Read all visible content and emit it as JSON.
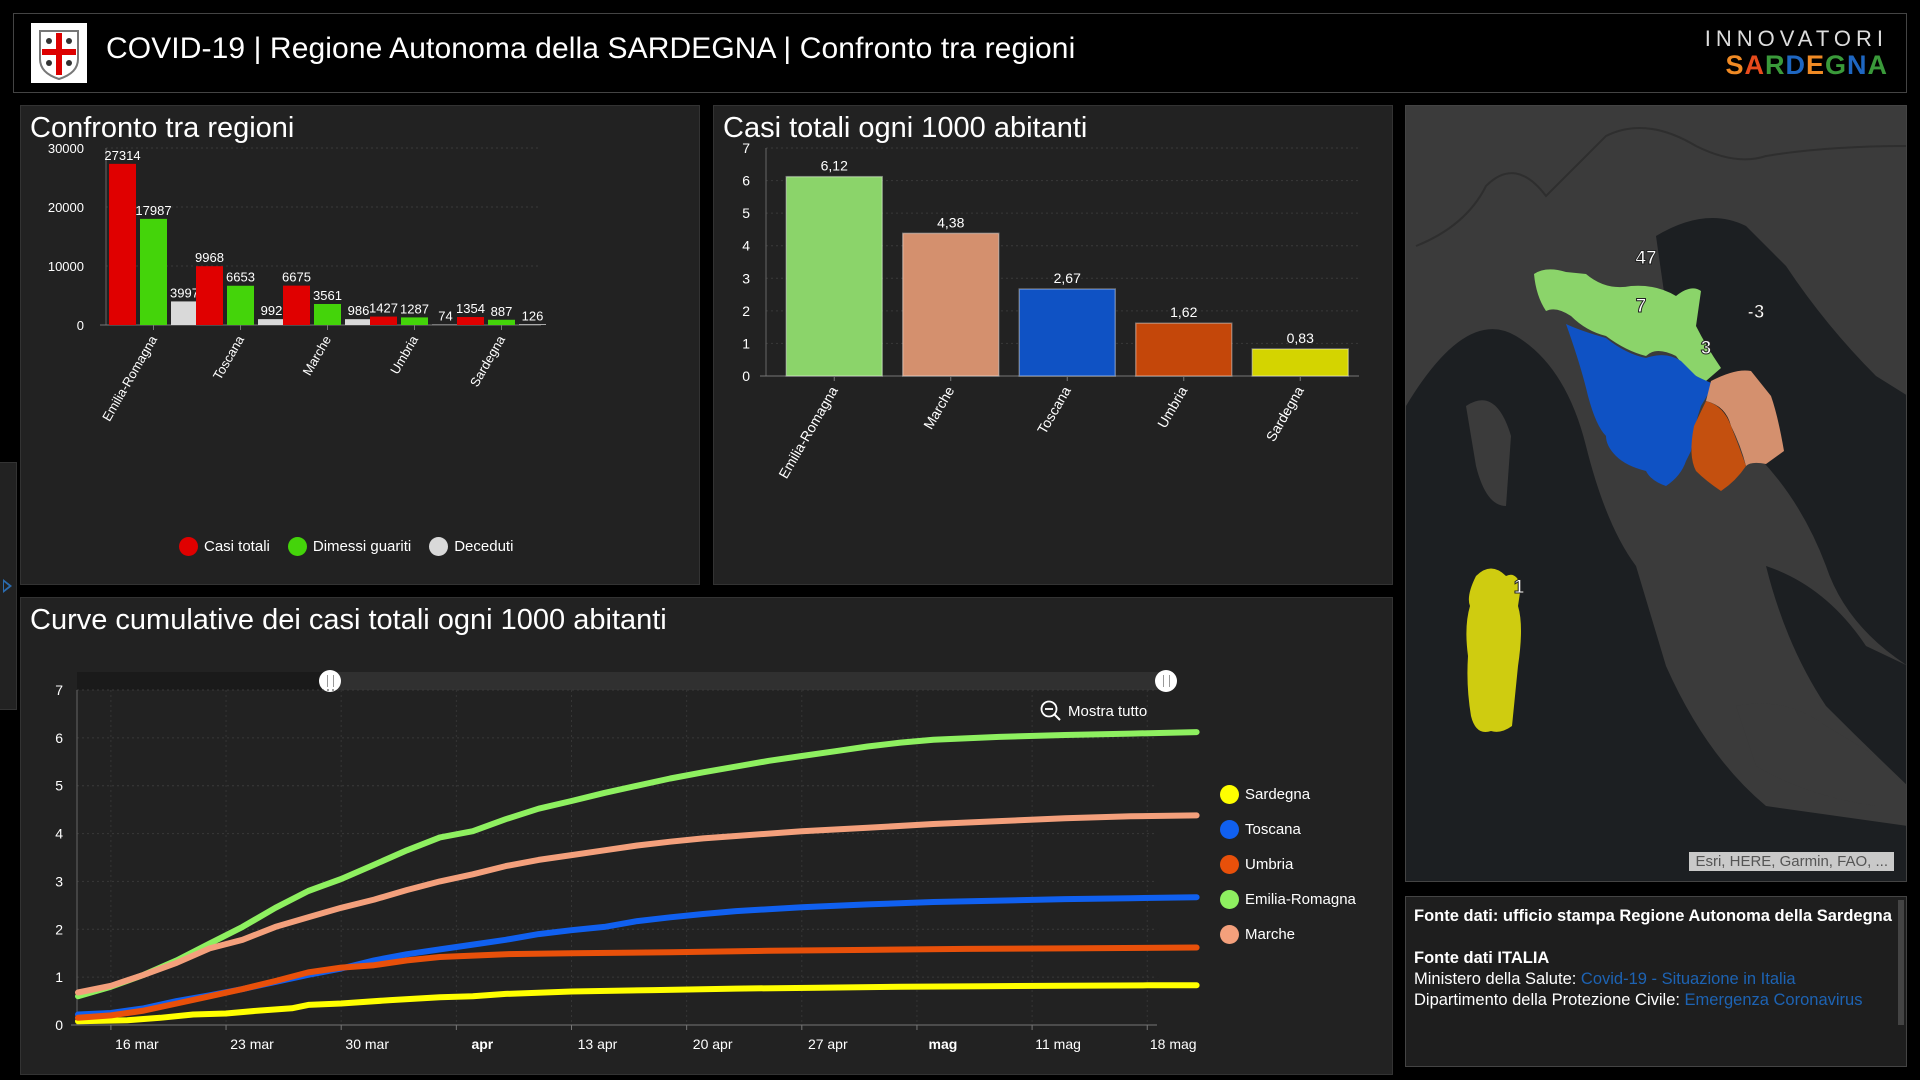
{
  "header": {
    "title": "COVID-19 | Regione Autonoma della SARDEGNA | Confronto tra regioni",
    "logo_icon": "sardinia-coat-of-arms-icon",
    "brand_top": "INNOVATORI",
    "brand_bottom_letters": [
      "S",
      "A",
      "R",
      "D",
      "E",
      "G",
      "N",
      "A"
    ],
    "brand_bottom_colors": [
      "#f08a24",
      "#e84b1c",
      "#3a9a3a",
      "#1e66c1",
      "#f08a24",
      "#3a9a3a",
      "#1e66c1",
      "#3a9a3a"
    ]
  },
  "panel_bar": {
    "title": "Confronto tra regioni"
  },
  "panel_per1000": {
    "title": "Casi totali ogni 1000 abitanti"
  },
  "panel_lines": {
    "title": "Curve cumulative dei casi totali ogni 1000 abitanti",
    "zoom_out_label": "Mostra tutto",
    "zoom_out_icon": "zoom-out-icon"
  },
  "map": {
    "attribution": "Esri, HERE, Garmin, FAO, ...",
    "labels": [
      {
        "region": "Emilia-Romagna",
        "value": "47",
        "color": "#8bd46a"
      },
      {
        "region": "Toscana",
        "value": "7",
        "color": "#0f52c4"
      },
      {
        "region": "Marche",
        "value": "-3",
        "color": "#d4906e"
      },
      {
        "region": "Umbria",
        "value": "3",
        "color": "#c4500f"
      },
      {
        "region": "Sardegna",
        "value": "1",
        "color": "#cfcc10"
      }
    ]
  },
  "info": {
    "line1_bold": "Fonte dati: ufficio stampa Regione Autonoma della Sardegna",
    "line2_bold": "Fonte dati ITALIA",
    "ministero_label": "Ministero della Salute: ",
    "ministero_link": "Covid-19 - Situazione in Italia",
    "protezione_label": "Dipartimento della Protezione Civile: ",
    "protezione_link": "Emergenza Coronavirus"
  },
  "chart_data": [
    {
      "type": "bar",
      "title": "Confronto tra regioni",
      "categories": [
        "Emilia-Romagna",
        "Toscana",
        "Marche",
        "Umbria",
        "Sardegna"
      ],
      "series": [
        {
          "name": "Casi totali",
          "color": "#e00000",
          "values": [
            27314,
            9968,
            6675,
            1427,
            1354
          ]
        },
        {
          "name": "Dimessi guariti",
          "color": "#44d40a",
          "values": [
            17987,
            6653,
            3561,
            1287,
            887
          ]
        },
        {
          "name": "Deceduti",
          "color": "#d9d9d9",
          "values": [
            3997,
            992,
            986,
            74,
            126
          ]
        }
      ],
      "yticks": [
        0,
        10000,
        20000,
        30000
      ],
      "ylim": [
        0,
        30000
      ],
      "grid": true,
      "legend": "bottom"
    },
    {
      "type": "bar",
      "title": "Casi totali ogni 1000 abitanti",
      "categories": [
        "Emilia-Romagna",
        "Marche",
        "Toscana",
        "Umbria",
        "Sardegna"
      ],
      "values": [
        6.12,
        4.38,
        2.67,
        1.62,
        0.83
      ],
      "value_labels": [
        "6,12",
        "4,38",
        "2,67",
        "1,62",
        "0,83"
      ],
      "colors": [
        "#8bd46a",
        "#d4906e",
        "#0f52c4",
        "#c4470a",
        "#d4d400"
      ],
      "yticks": [
        0,
        1,
        2,
        3,
        4,
        5,
        6,
        7
      ],
      "ylim": [
        0,
        7
      ],
      "grid": true
    },
    {
      "type": "line",
      "title": "Curve cumulative dei casi totali ogni 1000 abitanti",
      "x_start": "14 mar",
      "x_end": "20 mag",
      "x_ticks": [
        {
          "label": "16 mar",
          "day": 2,
          "bold": false
        },
        {
          "label": "23 mar",
          "day": 9,
          "bold": false
        },
        {
          "label": "30 mar",
          "day": 16,
          "bold": false
        },
        {
          "label": "apr",
          "day": 23,
          "bold": true
        },
        {
          "label": "13 apr",
          "day": 30,
          "bold": false
        },
        {
          "label": "20 apr",
          "day": 37,
          "bold": false
        },
        {
          "label": "27 apr",
          "day": 44,
          "bold": false
        },
        {
          "label": "mag",
          "day": 51,
          "bold": true
        },
        {
          "label": "11 mag",
          "day": 58,
          "bold": false
        },
        {
          "label": "18 mag",
          "day": 65,
          "bold": false
        }
      ],
      "yticks": [
        0,
        1,
        2,
        3,
        4,
        5,
        6,
        7
      ],
      "ylim": [
        0,
        7
      ],
      "xlim_days": [
        0,
        68
      ],
      "grid": true,
      "legend": "right",
      "range_slider": {
        "start_fraction": 0.3,
        "end_fraction": 1.0
      },
      "series": [
        {
          "name": "Sardegna",
          "color": "#ffff00",
          "points": [
            [
              0,
              0.08
            ],
            [
              3,
              0.1
            ],
            [
              5,
              0.15
            ],
            [
              7,
              0.22
            ],
            [
              9,
              0.24
            ],
            [
              11,
              0.3
            ],
            [
              13,
              0.35
            ],
            [
              14,
              0.42
            ],
            [
              16,
              0.45
            ],
            [
              19,
              0.52
            ],
            [
              22,
              0.58
            ],
            [
              24,
              0.6
            ],
            [
              26,
              0.65
            ],
            [
              30,
              0.7
            ],
            [
              35,
              0.73
            ],
            [
              40,
              0.76
            ],
            [
              45,
              0.78
            ],
            [
              50,
              0.8
            ],
            [
              55,
              0.81
            ],
            [
              60,
              0.82
            ],
            [
              65,
              0.83
            ],
            [
              68,
              0.83
            ]
          ]
        },
        {
          "name": "Toscana",
          "color": "#1060f0",
          "points": [
            [
              0,
              0.22
            ],
            [
              2,
              0.25
            ],
            [
              4,
              0.35
            ],
            [
              6,
              0.5
            ],
            [
              8,
              0.62
            ],
            [
              10,
              0.75
            ],
            [
              12,
              0.9
            ],
            [
              14,
              1.05
            ],
            [
              16,
              1.18
            ],
            [
              18,
              1.35
            ],
            [
              20,
              1.48
            ],
            [
              22,
              1.58
            ],
            [
              24,
              1.68
            ],
            [
              26,
              1.78
            ],
            [
              28,
              1.9
            ],
            [
              30,
              1.98
            ],
            [
              32,
              2.05
            ],
            [
              34,
              2.17
            ],
            [
              36,
              2.25
            ],
            [
              38,
              2.32
            ],
            [
              40,
              2.38
            ],
            [
              44,
              2.46
            ],
            [
              48,
              2.52
            ],
            [
              52,
              2.57
            ],
            [
              56,
              2.6
            ],
            [
              60,
              2.63
            ],
            [
              64,
              2.65
            ],
            [
              68,
              2.67
            ]
          ]
        },
        {
          "name": "Umbria",
          "color": "#e8500a",
          "points": [
            [
              0,
              0.15
            ],
            [
              2,
              0.2
            ],
            [
              4,
              0.3
            ],
            [
              6,
              0.45
            ],
            [
              8,
              0.6
            ],
            [
              10,
              0.75
            ],
            [
              12,
              0.92
            ],
            [
              14,
              1.1
            ],
            [
              16,
              1.2
            ],
            [
              18,
              1.25
            ],
            [
              20,
              1.35
            ],
            [
              22,
              1.42
            ],
            [
              24,
              1.45
            ],
            [
              26,
              1.48
            ],
            [
              30,
              1.5
            ],
            [
              36,
              1.52
            ],
            [
              42,
              1.55
            ],
            [
              48,
              1.57
            ],
            [
              54,
              1.59
            ],
            [
              60,
              1.6
            ],
            [
              68,
              1.62
            ]
          ]
        },
        {
          "name": "Emilia-Romagna",
          "color": "#8ef060",
          "points": [
            [
              0,
              0.6
            ],
            [
              2,
              0.8
            ],
            [
              4,
              1.05
            ],
            [
              6,
              1.35
            ],
            [
              8,
              1.7
            ],
            [
              10,
              2.05
            ],
            [
              12,
              2.45
            ],
            [
              14,
              2.8
            ],
            [
              16,
              3.05
            ],
            [
              18,
              3.35
            ],
            [
              20,
              3.65
            ],
            [
              22,
              3.92
            ],
            [
              24,
              4.05
            ],
            [
              26,
              4.3
            ],
            [
              28,
              4.52
            ],
            [
              30,
              4.68
            ],
            [
              32,
              4.85
            ],
            [
              34,
              5.0
            ],
            [
              36,
              5.15
            ],
            [
              38,
              5.28
            ],
            [
              40,
              5.4
            ],
            [
              42,
              5.52
            ],
            [
              44,
              5.62
            ],
            [
              46,
              5.72
            ],
            [
              48,
              5.82
            ],
            [
              50,
              5.9
            ],
            [
              52,
              5.96
            ],
            [
              56,
              6.02
            ],
            [
              60,
              6.06
            ],
            [
              64,
              6.09
            ],
            [
              68,
              6.12
            ]
          ]
        },
        {
          "name": "Marche",
          "color": "#f4a07c",
          "points": [
            [
              0,
              0.68
            ],
            [
              2,
              0.82
            ],
            [
              4,
              1.05
            ],
            [
              6,
              1.3
            ],
            [
              8,
              1.6
            ],
            [
              10,
              1.78
            ],
            [
              12,
              2.05
            ],
            [
              14,
              2.25
            ],
            [
              16,
              2.45
            ],
            [
              18,
              2.62
            ],
            [
              20,
              2.82
            ],
            [
              22,
              3.0
            ],
            [
              24,
              3.15
            ],
            [
              26,
              3.32
            ],
            [
              28,
              3.45
            ],
            [
              30,
              3.55
            ],
            [
              32,
              3.65
            ],
            [
              34,
              3.75
            ],
            [
              36,
              3.83
            ],
            [
              38,
              3.9
            ],
            [
              40,
              3.95
            ],
            [
              44,
              4.05
            ],
            [
              48,
              4.12
            ],
            [
              52,
              4.2
            ],
            [
              56,
              4.26
            ],
            [
              60,
              4.32
            ],
            [
              64,
              4.36
            ],
            [
              68,
              4.38
            ]
          ]
        }
      ]
    }
  ]
}
